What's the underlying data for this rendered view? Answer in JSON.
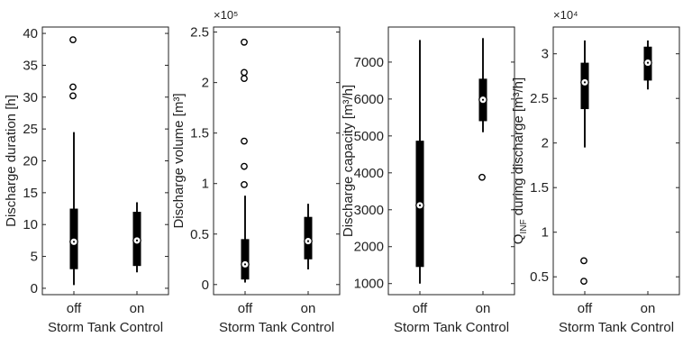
{
  "chart_data": [
    {
      "type": "boxplot",
      "ylabel": "Discharge duration [h]",
      "xlabel": "Storm Tank Control",
      "categories": [
        "off",
        "on"
      ],
      "ylim": [
        -1,
        41
      ],
      "yticks": [
        0,
        5,
        10,
        15,
        20,
        25,
        30,
        35,
        40
      ],
      "exponent_label": "",
      "boxes": [
        {
          "category": "off",
          "whisker_low": 0.5,
          "q1": 3,
          "median": 7.3,
          "q3": 12.5,
          "whisker_high": 24.5,
          "outliers": [
            30.2,
            31.6,
            39
          ]
        },
        {
          "category": "on",
          "whisker_low": 2.5,
          "q1": 3.5,
          "median": 7.5,
          "q3": 12,
          "whisker_high": 13.5,
          "outliers": []
        }
      ]
    },
    {
      "type": "boxplot",
      "ylabel": "Discharge volume [m³]",
      "xlabel": "Storm Tank Control",
      "categories": [
        "off",
        "on"
      ],
      "ylim": [
        -0.1,
        2.55
      ],
      "yticks": [
        0,
        0.5,
        1,
        1.5,
        2,
        2.5
      ],
      "exponent_label": "×10⁵",
      "boxes": [
        {
          "category": "off",
          "whisker_low": 0.02,
          "q1": 0.05,
          "median": 0.2,
          "q3": 0.45,
          "whisker_high": 0.88,
          "outliers": [
            0.99,
            1.17,
            1.42,
            2.04,
            2.1,
            2.4
          ]
        },
        {
          "category": "on",
          "whisker_low": 0.15,
          "q1": 0.25,
          "median": 0.43,
          "q3": 0.67,
          "whisker_high": 0.8,
          "outliers": []
        }
      ]
    },
    {
      "type": "boxplot",
      "ylabel": "Discharge capacity [m³/h]",
      "xlabel": "Storm Tank Control",
      "categories": [
        "off",
        "on"
      ],
      "ylim": [
        700,
        7950
      ],
      "yticks": [
        1000,
        2000,
        3000,
        4000,
        5000,
        6000,
        7000
      ],
      "exponent_label": "",
      "boxes": [
        {
          "category": "off",
          "whisker_low": 1000,
          "q1": 1450,
          "median": 3120,
          "q3": 4870,
          "whisker_high": 7600,
          "outliers": []
        },
        {
          "category": "on",
          "whisker_low": 5100,
          "q1": 5400,
          "median": 5980,
          "q3": 6550,
          "whisker_high": 7650,
          "outliers": [
            3880
          ]
        }
      ]
    },
    {
      "type": "boxplot",
      "ylabel": "Q_INF during discharge [m³/h]",
      "xlabel": "Storm Tank Control",
      "categories": [
        "off",
        "on"
      ],
      "ylim": [
        0.3,
        3.3
      ],
      "yticks": [
        0.5,
        1,
        1.5,
        2,
        2.5,
        3
      ],
      "exponent_label": "×10⁴",
      "boxes": [
        {
          "category": "off",
          "whisker_low": 1.95,
          "q1": 2.38,
          "median": 2.68,
          "q3": 2.9,
          "whisker_high": 3.15,
          "outliers": [
            0.45,
            0.68
          ]
        },
        {
          "category": "on",
          "whisker_low": 2.6,
          "q1": 2.7,
          "median": 2.9,
          "q3": 3.08,
          "whisker_high": 3.15,
          "outliers": []
        }
      ]
    }
  ],
  "labels": {
    "panel1_ylabel": "Discharge duration [h]",
    "panel2_ylabel": "Discharge volume [m³]",
    "panel3_ylabel": "Discharge capacity [m³/h]",
    "panel4_ylabel_main": "Q",
    "panel4_ylabel_sub": "INF",
    "panel4_ylabel_rest": " during discharge [m³/h]",
    "exp2": "×10⁵",
    "exp4": "×10⁴"
  }
}
